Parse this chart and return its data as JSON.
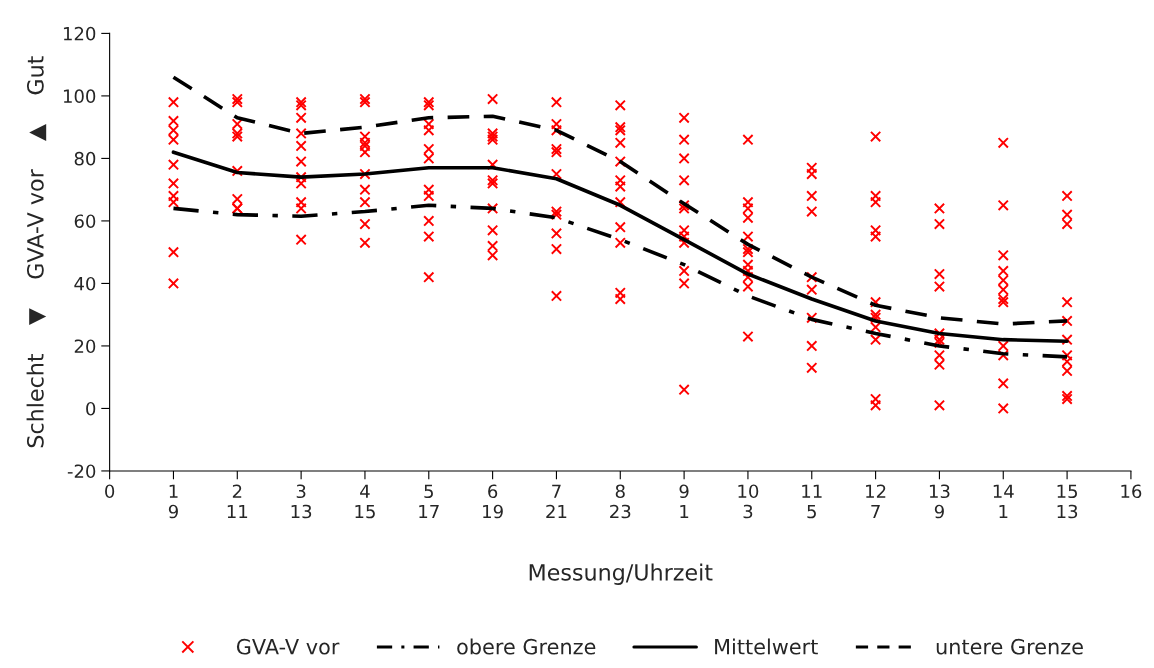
{
  "chart_data": {
    "type": "scatter",
    "xlabel": "Messung/Uhrzeit",
    "ylabel": "Schlecht    ▼    GVA-V vor    ▲    Gut",
    "xlim": [
      0,
      16
    ],
    "xticks": [
      0,
      {
        "value": 1,
        "label": "1\n9"
      },
      {
        "value": 2,
        "label": "2\n11"
      },
      {
        "value": 3,
        "label": "3\n13"
      },
      {
        "value": 4,
        "label": "4\n15"
      },
      {
        "value": 5,
        "label": "5\n17"
      },
      {
        "value": 6,
        "label": "6\n19"
      },
      {
        "value": 7,
        "label": "7\n21"
      },
      {
        "value": 8,
        "label": "8\n23"
      },
      {
        "value": 9,
        "label": "9\n1"
      },
      {
        "value": 10,
        "label": "10\n3"
      },
      {
        "value": 11,
        "label": "11\n5"
      },
      {
        "value": 12,
        "label": "12\n7"
      },
      {
        "value": 13,
        "label": "13\n9"
      },
      {
        "value": 14,
        "label": "14\n1"
      },
      {
        "value": 15,
        "label": "15\n13"
      },
      16
    ],
    "ylim": [
      -20,
      120
    ],
    "yticks": [
      -20,
      0,
      20,
      40,
      60,
      80,
      100,
      120
    ],
    "grid": false,
    "legend": "bottom",
    "series": [
      {
        "name": "GVA-V vor",
        "color": "#ff0000",
        "marker": "cross",
        "x": [
          1,
          1,
          1,
          1,
          1,
          1,
          1,
          1,
          1,
          1,
          2,
          2,
          2,
          2,
          2,
          2,
          2,
          2,
          2,
          3,
          3,
          3,
          3,
          3,
          3,
          3,
          3,
          3,
          3,
          3,
          4,
          4,
          4,
          4,
          4,
          4,
          4,
          4,
          4,
          4,
          4,
          5,
          5,
          5,
          5,
          5,
          5,
          5,
          5,
          5,
          5,
          5,
          6,
          6,
          6,
          6,
          6,
          6,
          6,
          6,
          6,
          6,
          6,
          7,
          7,
          7,
          7,
          7,
          7,
          7,
          7,
          7,
          7,
          7,
          8,
          8,
          8,
          8,
          8,
          8,
          8,
          8,
          8,
          8,
          8,
          8,
          9,
          9,
          9,
          9,
          9,
          9,
          9,
          9,
          9,
          9,
          9,
          9,
          10,
          10,
          10,
          10,
          10,
          10,
          10,
          10,
          10,
          10,
          10,
          10,
          11,
          11,
          11,
          11,
          11,
          11,
          11,
          11,
          11,
          12,
          12,
          12,
          12,
          12,
          12,
          12,
          12,
          12,
          12,
          12,
          12,
          13,
          13,
          13,
          13,
          13,
          13,
          13,
          13,
          13,
          13,
          14,
          14,
          14,
          14,
          14,
          14,
          14,
          14,
          14,
          14,
          14,
          14,
          15,
          15,
          15,
          15,
          15,
          15,
          15,
          15,
          15,
          15,
          15
        ],
        "values": [
          98,
          92,
          89,
          86,
          78,
          72,
          68,
          66,
          50,
          40,
          99,
          98,
          91,
          88,
          87,
          76,
          67,
          64,
          64,
          98,
          97,
          93,
          88,
          84,
          79,
          74,
          72,
          66,
          64,
          54,
          99,
          98,
          87,
          85,
          84,
          82,
          75,
          70,
          66,
          59,
          53,
          98,
          97,
          91,
          89,
          83,
          80,
          70,
          68,
          60,
          55,
          42,
          99,
          88,
          87,
          86,
          78,
          73,
          72,
          64,
          57,
          52,
          49,
          98,
          91,
          89,
          83,
          82,
          75,
          63,
          62,
          56,
          51,
          36,
          97,
          90,
          89,
          85,
          79,
          73,
          71,
          66,
          58,
          53,
          37,
          35,
          93,
          86,
          80,
          73,
          65,
          64,
          57,
          55,
          53,
          44,
          40,
          6,
          86,
          66,
          64,
          61,
          55,
          51,
          50,
          46,
          44,
          42,
          39,
          23,
          77,
          75,
          68,
          63,
          42,
          38,
          29,
          20,
          13,
          87,
          68,
          66,
          57,
          55,
          34,
          30,
          29,
          26,
          22,
          3,
          1,
          64,
          59,
          43,
          39,
          24,
          22,
          21,
          17,
          14,
          1,
          85,
          65,
          49,
          44,
          41,
          38,
          35,
          34,
          20,
          17,
          8,
          0,
          68,
          62,
          59,
          34,
          28,
          22,
          17,
          15,
          12,
          4,
          3
        ]
      },
      {
        "name": "obere Grenze",
        "type": "line",
        "color": "#000000",
        "line_style": "dashdot",
        "marker": "none",
        "x": [
          1,
          2,
          3,
          4,
          5,
          6,
          7,
          8,
          9,
          10,
          11,
          12,
          13,
          14,
          15
        ],
        "values": [
          64,
          62,
          61.5,
          63,
          65,
          64,
          61,
          54,
          46,
          36,
          28.5,
          24,
          20,
          17.5,
          16.5
        ]
      },
      {
        "name": "Mittelwert",
        "type": "line",
        "color": "#000000",
        "line_style": "solid",
        "marker": "none",
        "x": [
          1,
          2,
          3,
          4,
          5,
          6,
          7,
          8,
          9,
          10,
          11,
          12,
          13,
          14,
          15
        ],
        "values": [
          82,
          75.5,
          74,
          75,
          77,
          77,
          73.5,
          65,
          54,
          43,
          35,
          28,
          24,
          22,
          21.5
        ]
      },
      {
        "name": "untere Grenze",
        "type": "line",
        "color": "#000000",
        "line_style": "dashed",
        "marker": "none",
        "x": [
          1,
          2,
          3,
          4,
          5,
          6,
          7,
          8,
          9,
          10,
          11,
          12,
          13,
          14,
          15
        ],
        "values": [
          106,
          93,
          88,
          90,
          93,
          93.5,
          89,
          79,
          65.5,
          52.5,
          42,
          33,
          29,
          27,
          28
        ]
      }
    ]
  }
}
